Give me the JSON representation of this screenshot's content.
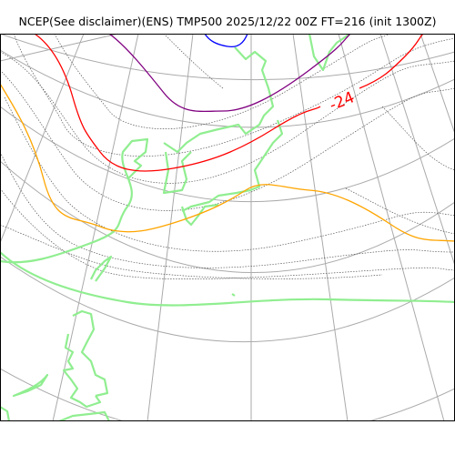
{
  "title": "NCEP(See disclaimer)(ENS) TMP500 2025/12/22 00Z FT=216 (init 1300Z)",
  "contour_label": "-24",
  "colors": {
    "graticule": "#aaaaaa",
    "coast": "#90ee90",
    "ensemble": "#555555",
    "contour_red": "#ff0000",
    "contour_orange": "#ffa500",
    "contour_purple": "#800080",
    "contour_blue": "#0000ff"
  }
}
